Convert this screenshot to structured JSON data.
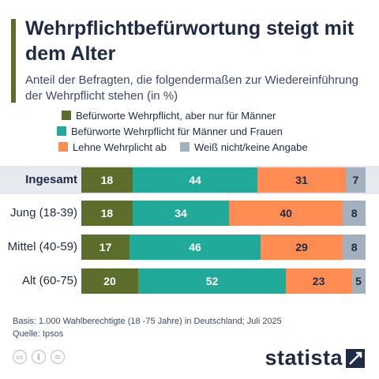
{
  "header": {
    "title": "Wehrpflichtbefürwortung steigt mit dem Alter",
    "subtitle": "Anteil der Befragten, die folgendermaßen zur Wiedereinführung der Wehrpflicht stehen (in %)"
  },
  "legend": [
    {
      "label": "Befürworte Wehrpflicht, aber nur für Männer",
      "color": "#5d6e2c"
    },
    {
      "label": "Befürworte Wehrpflicht für Männer und Frauen",
      "color": "#21a99a"
    },
    {
      "label": "Lehne Wehrplicht ab",
      "color": "#ff8c52"
    },
    {
      "label": "Weiß nicht/keine Angabe",
      "color": "#a3b1bf"
    }
  ],
  "chart_data": {
    "type": "bar",
    "orientation": "horizontal",
    "stacked": true,
    "categories": [
      "Ingesamt",
      "Jung (18-39)",
      "Mittel (40-59)",
      "Alt (60-75)"
    ],
    "series": [
      {
        "name": "Befürworte Wehrpflicht, aber nur für Männer",
        "values": [
          18,
          18,
          17,
          20
        ],
        "color": "#5d6e2c"
      },
      {
        "name": "Befürworte Wehrpflicht für Männer und Frauen",
        "values": [
          44,
          34,
          46,
          52
        ],
        "color": "#21a99a"
      },
      {
        "name": "Lehne Wehrplicht ab",
        "values": [
          31,
          40,
          29,
          23
        ],
        "color": "#ff8c52"
      },
      {
        "name": "Weiß nicht/keine Angabe",
        "values": [
          7,
          8,
          8,
          5
        ],
        "color": "#a3b1bf"
      }
    ],
    "label_colors": [
      "#ffffff",
      "#ffffff",
      "#1f2a44",
      "#1f2a44"
    ],
    "highlight_category": "Ingesamt"
  },
  "footer": {
    "basis": "Basis: 1.000 Wahlberechtigte (18 -75 Jahre) in Deutschland; Juli 2025",
    "source": "Quelle: Ipsos",
    "brand": "statista"
  }
}
